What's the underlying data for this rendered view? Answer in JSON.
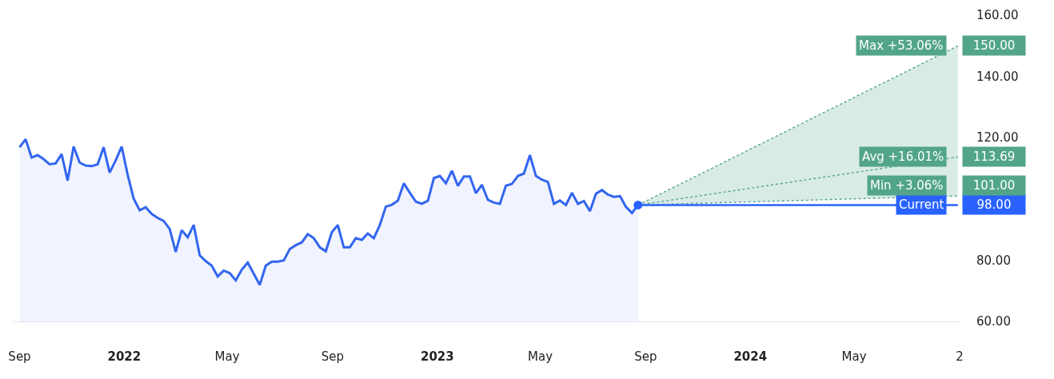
{
  "chart_data": {
    "type": "area",
    "xlim": [
      "2021-08-25",
      "2024-09-01"
    ],
    "xticks": [
      {
        "value": "2021-09-01",
        "label": "Sep"
      },
      {
        "value": "2022-01-01",
        "label": "2022"
      },
      {
        "value": "2022-05-01",
        "label": "May"
      },
      {
        "value": "2022-09-01",
        "label": "Sep"
      },
      {
        "value": "2023-01-01",
        "label": "2023"
      },
      {
        "value": "2023-05-01",
        "label": "May"
      },
      {
        "value": "2023-09-01",
        "label": "Sep"
      },
      {
        "value": "2024-01-01",
        "label": "2024"
      },
      {
        "value": "2024-05-01",
        "label": "May"
      },
      {
        "value": "2024-09-01",
        "label": "2"
      }
    ],
    "ylim": [
      60,
      160
    ],
    "yticks": [
      {
        "value": 60,
        "label": "60.00"
      },
      {
        "value": 80,
        "label": "80.00"
      },
      {
        "value": 120,
        "label": "120.00"
      },
      {
        "value": 140,
        "label": "140.00"
      },
      {
        "value": 160,
        "label": "160.00"
      }
    ],
    "grid": false,
    "legend": false,
    "series": [
      {
        "color": "#3366f0",
        "marker": "none",
        "line_style": "solid",
        "x": [
          "2021-09-01",
          "2021-09-08",
          "2021-09-15",
          "2021-09-22",
          "2021-09-29",
          "2021-10-06",
          "2021-10-13",
          "2021-10-20",
          "2021-10-27",
          "2021-11-03",
          "2021-11-10",
          "2021-11-17",
          "2021-11-24",
          "2021-12-01",
          "2021-12-08",
          "2021-12-15",
          "2021-12-22",
          "2021-12-29",
          "2022-01-05",
          "2022-01-12",
          "2022-01-19",
          "2022-01-26",
          "2022-02-02",
          "2022-02-09",
          "2022-02-16",
          "2022-02-23",
          "2022-03-02",
          "2022-03-09",
          "2022-03-16",
          "2022-03-23",
          "2022-03-30",
          "2022-04-06",
          "2022-04-13",
          "2022-04-20",
          "2022-04-27",
          "2022-05-04",
          "2022-05-11",
          "2022-05-18",
          "2022-05-25",
          "2022-06-01",
          "2022-06-08",
          "2022-06-15",
          "2022-06-22",
          "2022-06-29",
          "2022-07-06",
          "2022-07-13",
          "2022-07-20",
          "2022-07-27",
          "2022-08-03",
          "2022-08-10",
          "2022-08-17",
          "2022-08-24",
          "2022-08-31",
          "2022-09-07",
          "2022-09-14",
          "2022-09-21",
          "2022-09-28",
          "2022-10-05",
          "2022-10-12",
          "2022-10-19",
          "2022-10-26",
          "2022-11-02",
          "2022-11-09",
          "2022-11-16",
          "2022-11-23",
          "2022-11-30",
          "2022-12-07",
          "2022-12-14",
          "2022-12-21",
          "2022-12-28",
          "2023-01-04",
          "2023-01-11",
          "2023-01-18",
          "2023-01-25",
          "2023-02-01",
          "2023-02-08",
          "2023-02-15",
          "2023-02-22",
          "2023-03-01",
          "2023-03-08",
          "2023-03-15",
          "2023-03-22",
          "2023-03-29",
          "2023-04-05",
          "2023-04-12",
          "2023-04-19",
          "2023-04-26",
          "2023-05-03",
          "2023-05-10",
          "2023-05-17",
          "2023-05-24",
          "2023-05-31",
          "2023-06-07",
          "2023-06-14",
          "2023-06-21",
          "2023-06-28",
          "2023-07-05",
          "2023-07-12",
          "2023-07-19",
          "2023-07-26",
          "2023-08-02",
          "2023-08-09",
          "2023-08-16",
          "2023-08-23"
        ],
        "values": [
          116.9,
          119.5,
          113.5,
          114.3,
          113.0,
          111.3,
          111.6,
          114.6,
          106.0,
          117.1,
          111.9,
          110.9,
          110.7,
          111.3,
          116.9,
          108.6,
          112.6,
          117.1,
          107.9,
          100.1,
          96.3,
          97.3,
          95.1,
          93.8,
          92.8,
          90.2,
          82.7,
          89.8,
          87.5,
          91.5,
          81.6,
          79.7,
          78.2,
          74.7,
          76.6,
          75.8,
          73.4,
          76.9,
          79.2,
          75.6,
          71.9,
          78.2,
          79.5,
          79.5,
          79.9,
          83.6,
          84.9,
          85.8,
          88.5,
          87.2,
          84.2,
          82.9,
          89.1,
          91.5,
          84.2,
          84.2,
          87.2,
          86.6,
          88.7,
          87.2,
          91.5,
          97.5,
          98.1,
          99.4,
          105.1,
          102.0,
          99.1,
          98.4,
          99.4,
          106.8,
          107.5,
          105.1,
          109.2,
          104.3,
          107.3,
          107.3,
          101.9,
          104.6,
          99.7,
          98.8,
          98.4,
          104.3,
          104.9,
          107.5,
          108.3,
          114.3,
          107.5,
          106.3,
          105.5,
          98.4,
          99.5,
          98.0,
          102.0,
          98.4,
          99.3,
          96.0,
          101.7,
          102.9,
          101.4,
          100.7,
          100.9,
          97.4,
          95.4,
          98
        ]
      },
      {
        "type": "line",
        "name": "Max +53.06%",
        "color": "#52a58a",
        "marker": "none",
        "line_style": "dotted",
        "x": [
          "2023-08-23",
          "2024-08-30"
        ],
        "values": [
          98,
          150
        ],
        "value_labels": [
          null,
          "150.00"
        ],
        "lower": [
          98,
          101
        ],
        "upper": [
          98,
          150
        ]
      },
      {
        "type": "line",
        "name": "Avg +16.01%",
        "color": "#52a58a",
        "marker": "none",
        "line_style": "dotted",
        "x": [
          "2023-08-23",
          "2024-08-30"
        ],
        "values": [
          98,
          113.69
        ],
        "value_labels": [
          null,
          "113.69"
        ]
      },
      {
        "type": "line",
        "name": "Min +3.06%",
        "color": "#52a58a",
        "marker": "none",
        "line_style": "dotted",
        "x": [
          "2023-08-23",
          "2024-08-30"
        ],
        "values": [
          98,
          101
        ],
        "value_labels": [
          null,
          "101.00"
        ]
      },
      {
        "type": "line",
        "name": "Current",
        "color": "#2962ff",
        "marker": "none",
        "line_style": "solid",
        "x": [
          "2023-08-23",
          "2024-08-30"
        ],
        "values": [
          98,
          98
        ],
        "value_labels": [
          null,
          "98.00"
        ]
      },
      {
        "type": "scatter",
        "color": "#2962ff",
        "marker": "circle",
        "x": [
          "2023-08-23"
        ],
        "values": [
          98
        ]
      }
    ]
  }
}
